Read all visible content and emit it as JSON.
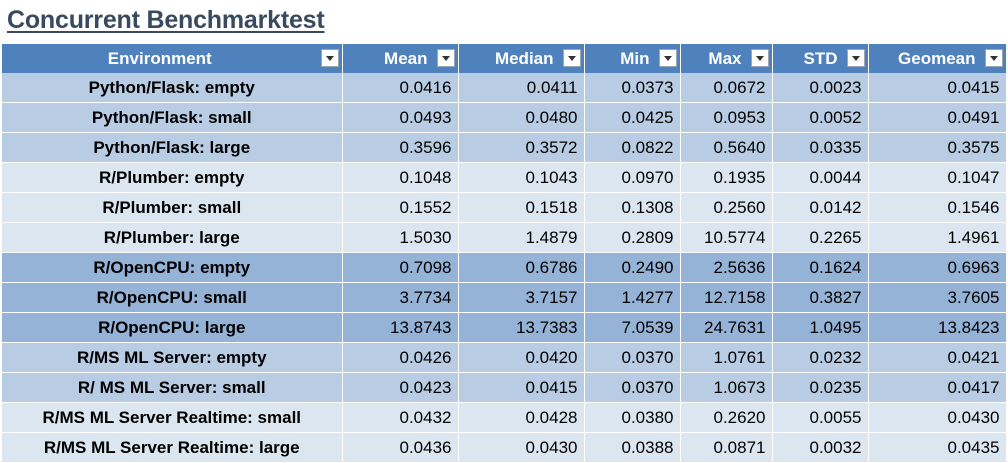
{
  "title": "Concurrent Benchmarktest",
  "header_color": "#4f81bd",
  "row_colors": [
    "#b8cce4",
    "#dce6f1",
    "#95b3d7"
  ],
  "columns": [
    "Environment",
    "Mean",
    "Median",
    "Min",
    "Max",
    "STD",
    "Geomean"
  ],
  "rows": [
    [
      "Python/Flask: empty",
      "0.0416",
      "0.0411",
      "0.0373",
      "0.0672",
      "0.0023",
      "0.0415"
    ],
    [
      "Python/Flask: small",
      "0.0493",
      "0.0480",
      "0.0425",
      "0.0953",
      "0.0052",
      "0.0491"
    ],
    [
      "Python/Flask: large",
      "0.3596",
      "0.3572",
      "0.0822",
      "0.5640",
      "0.0335",
      "0.3575"
    ],
    [
      "R/Plumber: empty",
      "0.1048",
      "0.1043",
      "0.0970",
      "0.1935",
      "0.0044",
      "0.1047"
    ],
    [
      "R/Plumber: small",
      "0.1552",
      "0.1518",
      "0.1308",
      "0.2560",
      "0.0142",
      "0.1546"
    ],
    [
      "R/Plumber: large",
      "1.5030",
      "1.4879",
      "0.2809",
      "10.5774",
      "0.2265",
      "1.4961"
    ],
    [
      "R/OpenCPU: empty",
      "0.7098",
      "0.6786",
      "0.2490",
      "2.5636",
      "0.1624",
      "0.6963"
    ],
    [
      "R/OpenCPU: small",
      "3.7734",
      "3.7157",
      "1.4277",
      "12.7158",
      "0.3827",
      "3.7605"
    ],
    [
      "R/OpenCPU: large",
      "13.8743",
      "13.7383",
      "7.0539",
      "24.7631",
      "1.0495",
      "13.8423"
    ],
    [
      "R/MS ML Server: empty",
      "0.0426",
      "0.0420",
      "0.0370",
      "1.0761",
      "0.0232",
      "0.0421"
    ],
    [
      "R/ MS ML Server: small",
      "0.0423",
      "0.0415",
      "0.0370",
      "1.0673",
      "0.0235",
      "0.0417"
    ],
    [
      "R/MS ML Server Realtime: small",
      "0.0432",
      "0.0428",
      "0.0380",
      "0.2620",
      "0.0055",
      "0.0430"
    ],
    [
      "R/MS ML Server Realtime: large",
      "0.0436",
      "0.0430",
      "0.0388",
      "0.0871",
      "0.0032",
      "0.0435"
    ]
  ]
}
